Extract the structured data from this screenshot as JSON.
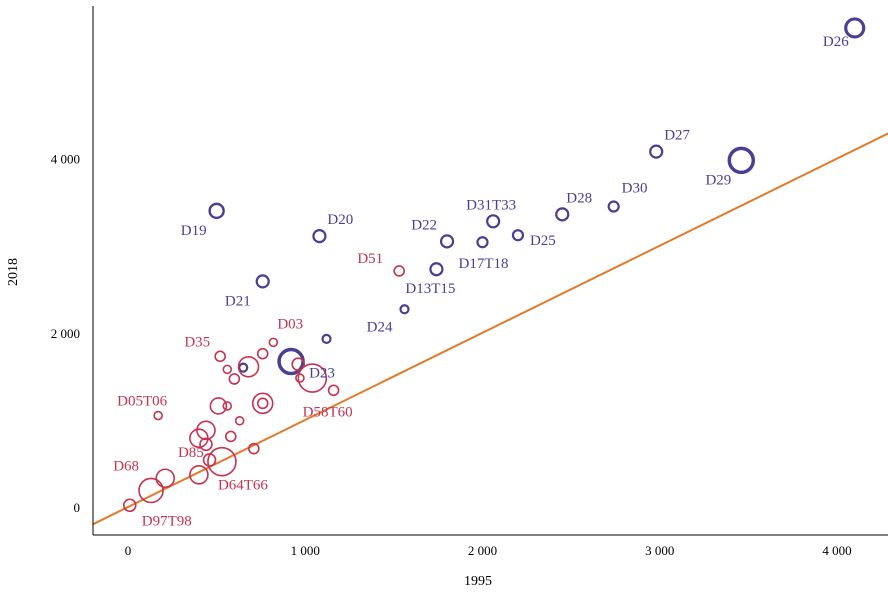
{
  "chart_data": {
    "type": "scatter",
    "title": "",
    "xlabel": "1995",
    "ylabel": "2018",
    "xlim": [
      -200,
      4300
    ],
    "ylim": [
      -200,
      5800
    ],
    "x_ticks": [
      {
        "value": 0,
        "label": "0"
      },
      {
        "value": 1000,
        "label": "1 000"
      },
      {
        "value": 2000,
        "label": "2 000"
      },
      {
        "value": 3000,
        "label": "3 000"
      },
      {
        "value": 4000,
        "label": "4 000"
      }
    ],
    "y_ticks": [
      {
        "value": 0,
        "label": "0"
      },
      {
        "value": 2000,
        "label": "2 000"
      },
      {
        "value": 4000,
        "label": "4 000"
      }
    ],
    "grid": false,
    "colors": {
      "group_blue": "#4b3f92",
      "group_red": "#c6334f",
      "reference_line": "#e07b2c"
    },
    "reference_line": {
      "x": [
        -200,
        4300
      ],
      "y": [
        -200,
        4300
      ]
    },
    "series": [
      {
        "group": "blue",
        "color": "#4b3f92",
        "points": [
          {
            "x": 4100,
            "y": 5500,
            "size": 9,
            "label": "D26"
          },
          {
            "x": 2980,
            "y": 4080,
            "size": 6,
            "label": "D27"
          },
          {
            "x": 3460,
            "y": 3980,
            "size": 12,
            "label": "D29"
          },
          {
            "x": 2740,
            "y": 3450,
            "size": 5,
            "label": "D30"
          },
          {
            "x": 2450,
            "y": 3360,
            "size": 6,
            "label": "D28"
          },
          {
            "x": 2060,
            "y": 3280,
            "size": 6,
            "label": "D31T33"
          },
          {
            "x": 2200,
            "y": 3120,
            "size": 5,
            "label": "D25"
          },
          {
            "x": 1800,
            "y": 3050,
            "size": 6,
            "label": "D22"
          },
          {
            "x": 2000,
            "y": 3040,
            "size": 5,
            "label": "D17T18"
          },
          {
            "x": 1740,
            "y": 2730,
            "size": 6,
            "label": "D13T15"
          },
          {
            "x": 1560,
            "y": 2270,
            "size": 4,
            "label": "D24"
          },
          {
            "x": 1080,
            "y": 3110,
            "size": 6,
            "label": "D20"
          },
          {
            "x": 500,
            "y": 3400,
            "size": 7,
            "label": "D19"
          },
          {
            "x": 760,
            "y": 2590,
            "size": 6,
            "label": "D21"
          },
          {
            "x": 1120,
            "y": 1930,
            "size": 4,
            "label": ""
          },
          {
            "x": 920,
            "y": 1670,
            "size": 12,
            "label": "D23"
          },
          {
            "x": 650,
            "y": 1600,
            "size": 4,
            "label": ""
          }
        ]
      },
      {
        "group": "red",
        "color": "#c6334f",
        "points": [
          {
            "x": 1530,
            "y": 2710,
            "size": 5,
            "label": "D51"
          },
          {
            "x": 820,
            "y": 1890,
            "size": 4,
            "label": "D03"
          },
          {
            "x": 520,
            "y": 1730,
            "size": 5,
            "label": "D35"
          },
          {
            "x": 560,
            "y": 1580,
            "size": 4,
            "label": ""
          },
          {
            "x": 600,
            "y": 1470,
            "size": 5,
            "label": ""
          },
          {
            "x": 680,
            "y": 1610,
            "size": 10,
            "label": ""
          },
          {
            "x": 760,
            "y": 1760,
            "size": 5,
            "label": ""
          },
          {
            "x": 960,
            "y": 1640,
            "size": 6,
            "label": ""
          },
          {
            "x": 970,
            "y": 1480,
            "size": 4,
            "label": ""
          },
          {
            "x": 1040,
            "y": 1480,
            "size": 14,
            "label": ""
          },
          {
            "x": 1160,
            "y": 1340,
            "size": 5,
            "label": "D58T60"
          },
          {
            "x": 760,
            "y": 1190,
            "size": 10,
            "label": ""
          },
          {
            "x": 760,
            "y": 1190,
            "size": 5,
            "label": ""
          },
          {
            "x": 510,
            "y": 1160,
            "size": 8,
            "label": ""
          },
          {
            "x": 560,
            "y": 1160,
            "size": 4,
            "label": ""
          },
          {
            "x": 170,
            "y": 1050,
            "size": 4,
            "label": "D05T06"
          },
          {
            "x": 630,
            "y": 990,
            "size": 4,
            "label": ""
          },
          {
            "x": 440,
            "y": 880,
            "size": 9,
            "label": ""
          },
          {
            "x": 400,
            "y": 790,
            "size": 9,
            "label": ""
          },
          {
            "x": 580,
            "y": 810,
            "size": 5,
            "label": ""
          },
          {
            "x": 440,
            "y": 720,
            "size": 6,
            "label": ""
          },
          {
            "x": 710,
            "y": 670,
            "size": 5,
            "label": ""
          },
          {
            "x": 460,
            "y": 540,
            "size": 6,
            "label": ""
          },
          {
            "x": 530,
            "y": 520,
            "size": 14,
            "label": "D64T66"
          },
          {
            "x": 400,
            "y": 370,
            "size": 9,
            "label": "D85"
          },
          {
            "x": 210,
            "y": 330,
            "size": 9,
            "label": ""
          },
          {
            "x": 130,
            "y": 190,
            "size": 12,
            "label": "D68"
          },
          {
            "x": 10,
            "y": 20,
            "size": 6,
            "label": "D97T98"
          }
        ]
      }
    ]
  }
}
